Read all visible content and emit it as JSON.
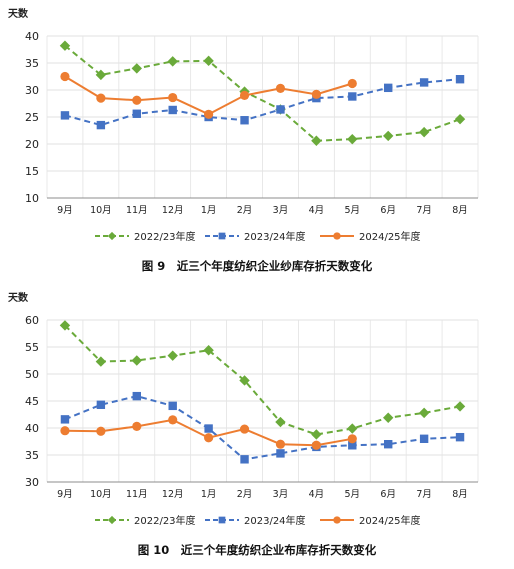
{
  "chart_data": [
    {
      "type": "line",
      "title": "图 9　近三个年度纺织企业纱库存折天数变化",
      "ylabel": "天数",
      "xlabel": "",
      "categories": [
        "9月",
        "10月",
        "11月",
        "12月",
        "1月",
        "2月",
        "3月",
        "4月",
        "5月",
        "6月",
        "7月",
        "8月"
      ],
      "ylim": [
        10,
        40
      ],
      "yticks": [
        10,
        15,
        20,
        25,
        30,
        35,
        40
      ],
      "grid": true,
      "legend": "bottom",
      "series": [
        {
          "name": "2022/23年度",
          "color": "#6aaa3a",
          "marker": "diamond",
          "dash": "dashed",
          "values": [
            38.2,
            32.8,
            34.0,
            35.3,
            35.4,
            29.7,
            26.4,
            20.6,
            20.9,
            21.5,
            22.2,
            24.6
          ]
        },
        {
          "name": "2023/24年度",
          "color": "#4472c4",
          "marker": "square",
          "dash": "dashed",
          "values": [
            25.3,
            23.5,
            25.6,
            26.3,
            25.0,
            24.4,
            26.4,
            28.5,
            28.8,
            30.4,
            31.4,
            32.0
          ]
        },
        {
          "name": "2024/25年度",
          "color": "#ed7d31",
          "marker": "circle",
          "dash": "solid",
          "values": [
            32.5,
            28.5,
            28.1,
            28.6,
            25.5,
            29.0,
            30.3,
            29.2,
            31.2,
            null,
            null,
            null
          ]
        }
      ]
    },
    {
      "type": "line",
      "title": "图 10　近三个年度纺织企业布库存折天数变化",
      "ylabel": "天数",
      "xlabel": "",
      "categories": [
        "9月",
        "10月",
        "11月",
        "12月",
        "1月",
        "2月",
        "3月",
        "4月",
        "5月",
        "6月",
        "7月",
        "8月"
      ],
      "ylim": [
        30,
        60
      ],
      "yticks": [
        30,
        35,
        40,
        45,
        50,
        55,
        60
      ],
      "grid": true,
      "legend": "bottom",
      "series": [
        {
          "name": "2022/23年度",
          "color": "#6aaa3a",
          "marker": "diamond",
          "dash": "dashed",
          "values": [
            59.0,
            52.3,
            52.5,
            53.4,
            54.4,
            48.8,
            41.1,
            38.8,
            39.9,
            41.9,
            42.8,
            44.0
          ]
        },
        {
          "name": "2023/24年度",
          "color": "#4472c4",
          "marker": "square",
          "dash": "dashed",
          "values": [
            41.6,
            44.3,
            45.9,
            44.1,
            39.9,
            34.2,
            35.3,
            36.5,
            36.8,
            37.0,
            38.0,
            38.3
          ]
        },
        {
          "name": "2024/25年度",
          "color": "#ed7d31",
          "marker": "circle",
          "dash": "solid",
          "values": [
            39.5,
            39.4,
            40.3,
            41.5,
            38.2,
            39.8,
            37.0,
            36.8,
            38.0,
            null,
            null,
            null
          ]
        }
      ]
    }
  ]
}
